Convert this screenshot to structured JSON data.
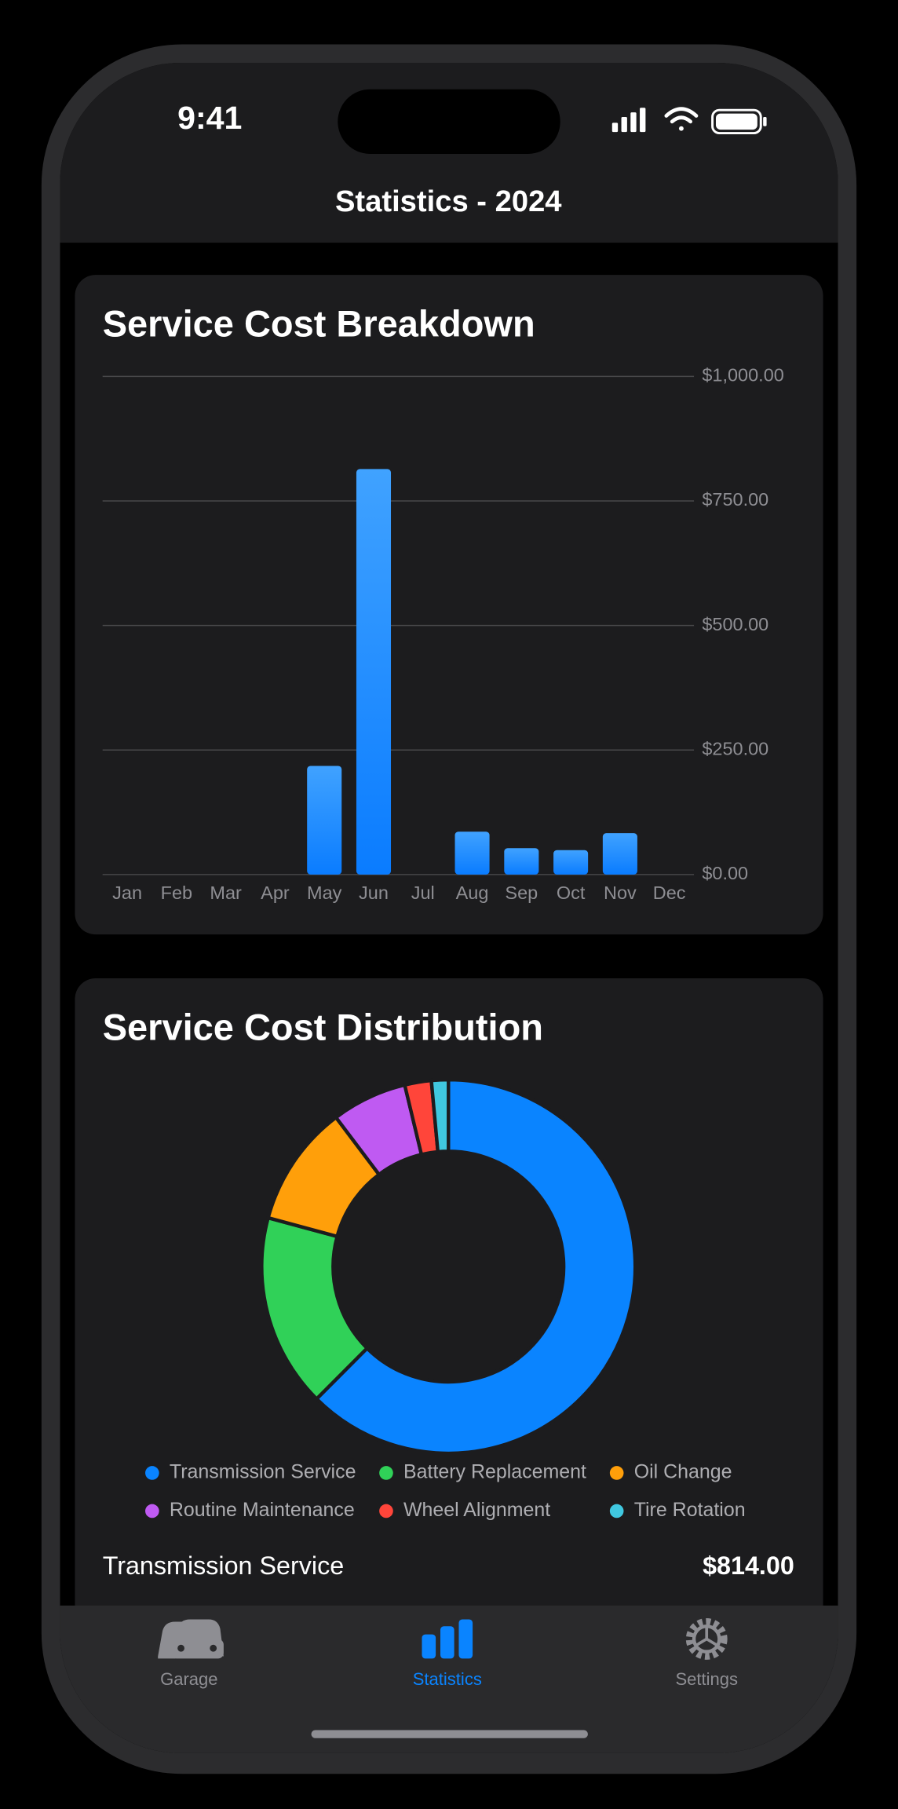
{
  "status_bar": {
    "time": "9:41"
  },
  "navigation": {
    "title": "Statistics - 2024"
  },
  "chart_data": [
    {
      "type": "bar",
      "title": "Service Cost Breakdown",
      "categories": [
        "Jan",
        "Feb",
        "Mar",
        "Apr",
        "May",
        "Jun",
        "Jul",
        "Aug",
        "Sep",
        "Oct",
        "Nov",
        "Dec"
      ],
      "values": [
        0,
        0,
        0,
        0,
        218,
        814,
        0,
        86,
        53,
        49,
        83,
        0
      ],
      "color": "#0a84ff",
      "ylim": [
        0,
        1000
      ],
      "yticks": [
        {
          "value": 0,
          "label": "$0.00"
        },
        {
          "value": 250,
          "label": "$250.00"
        },
        {
          "value": 500,
          "label": "$500.00"
        },
        {
          "value": 750,
          "label": "$750.00"
        },
        {
          "value": 1000,
          "label": "$1,000.00"
        }
      ],
      "grid": true
    },
    {
      "type": "donut",
      "title": "Service Cost Distribution",
      "categories": [
        "Transmission Service",
        "Battery Replacement",
        "Oil Change",
        "Routine Maintenance",
        "Wheel Alignment",
        "Tire Rotation"
      ],
      "values": [
        814,
        218,
        137,
        85,
        30,
        19
      ],
      "colors": [
        "#0a84ff",
        "#30d158",
        "#ff9f0a",
        "#bf5af2",
        "#ff453a",
        "#40c8e0"
      ]
    }
  ],
  "list_row": {
    "label": "Transmission Service",
    "value": "$814.00"
  },
  "tab_bar": {
    "items": [
      {
        "label": "Garage"
      },
      {
        "label": "Statistics"
      },
      {
        "label": "Settings"
      }
    ]
  }
}
